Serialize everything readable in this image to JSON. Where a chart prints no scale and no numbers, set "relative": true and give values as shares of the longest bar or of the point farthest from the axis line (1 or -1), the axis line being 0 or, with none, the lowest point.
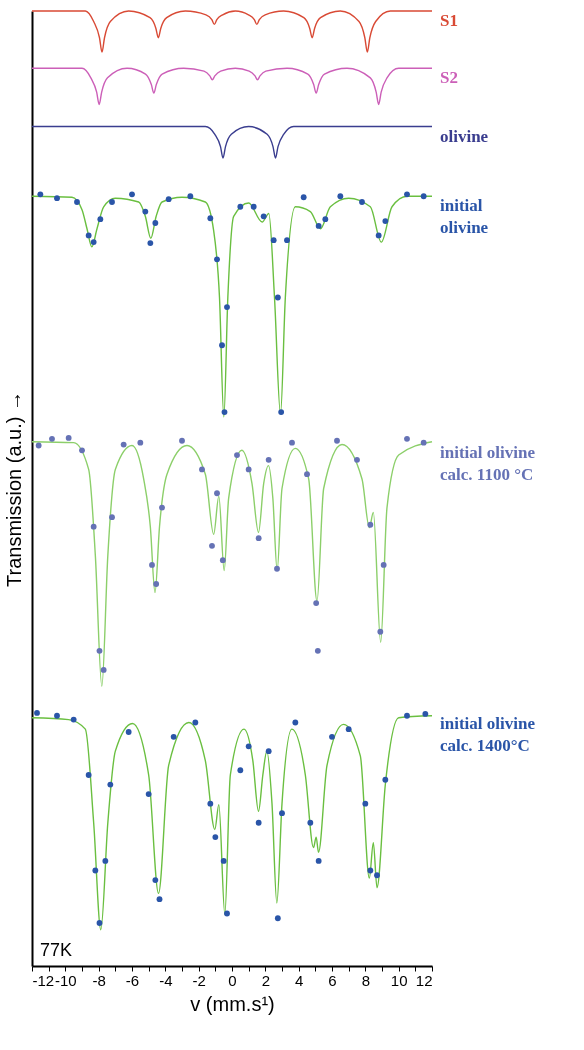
{
  "chart_data": {
    "type": "line",
    "relative": true,
    "xlabel": "v (mm.s¹)",
    "ylabel": "Transmission (a.u.) →",
    "xlim": [
      -12,
      12
    ],
    "xticks": [
      -12,
      {
        "value": -11,
        "label": null
      },
      -10,
      {
        "value": -9,
        "label": null
      },
      -8,
      {
        "value": -7,
        "label": null
      },
      -6,
      {
        "value": -5,
        "label": null
      },
      -4,
      {
        "value": -3,
        "label": null
      },
      -2,
      {
        "value": -1,
        "label": null
      },
      0,
      {
        "value": 1,
        "label": null
      },
      2,
      {
        "value": 3,
        "label": null
      },
      4,
      {
        "value": 5,
        "label": null
      },
      6,
      {
        "value": 7,
        "label": null
      },
      8,
      {
        "value": 9,
        "label": null
      },
      10,
      {
        "value": 11,
        "label": null
      },
      12
    ],
    "tick_labels": "x",
    "grid": false,
    "line_style": "solid",
    "annotations": [
      "77K"
    ],
    "series": [
      {
        "name": "S1",
        "type": "line",
        "color": "#d94a35",
        "x": [
          -12,
          -8.8,
          -8.3,
          -7.95,
          -7.8,
          -7.65,
          -7.3,
          -6.2,
          -4.92,
          -4.57,
          -4.42,
          -4.27,
          -3.92,
          -2.8,
          -1.56,
          -1.21,
          -1.06,
          -0.91,
          -0.56,
          0.2,
          0.99,
          1.34,
          1.49,
          1.64,
          1.99,
          3.1,
          4.31,
          4.66,
          4.81,
          4.96,
          5.31,
          6.5,
          7.62,
          7.97,
          8.12,
          8.27,
          8.62,
          9.5,
          12
        ],
        "values": [
          1,
          1,
          0.989,
          0.972,
          0.957,
          0.972,
          0.989,
          1,
          0.993,
          0.982,
          0.972,
          0.982,
          0.993,
          1,
          0.996,
          0.991,
          0.986,
          0.991,
          0.996,
          1,
          0.996,
          0.991,
          0.986,
          0.991,
          0.996,
          1,
          0.993,
          0.982,
          0.972,
          0.982,
          0.993,
          1,
          0.989,
          0.972,
          0.957,
          0.972,
          0.989,
          1,
          1
        ]
      },
      {
        "name": "S2",
        "type": "line",
        "color": "#cc5fb8",
        "x": [
          -12,
          -9,
          -8.47,
          -8.12,
          -7.97,
          -7.82,
          -7.47,
          -6.3,
          -5.19,
          -4.84,
          -4.69,
          -4.54,
          -4.19,
          -2.9,
          -1.68,
          -1.33,
          -1.18,
          -1.03,
          -0.68,
          0.2,
          1.03,
          1.38,
          1.53,
          1.68,
          2.03,
          3.3,
          4.55,
          4.9,
          5.05,
          5.2,
          5.55,
          6.9,
          8.3,
          8.65,
          8.8,
          8.95,
          9.3,
          10,
          12
        ],
        "values": [
          0.94,
          0.94,
          0.93,
          0.915,
          0.902,
          0.915,
          0.93,
          0.94,
          0.934,
          0.923,
          0.914,
          0.923,
          0.934,
          0.94,
          0.937,
          0.932,
          0.928,
          0.932,
          0.937,
          0.94,
          0.937,
          0.932,
          0.928,
          0.932,
          0.937,
          0.94,
          0.934,
          0.923,
          0.914,
          0.923,
          0.934,
          0.94,
          0.93,
          0.915,
          0.902,
          0.915,
          0.93,
          0.94,
          0.94
        ]
      },
      {
        "name": "olivine",
        "type": "line",
        "color": "#3a3d8f",
        "x": [
          -12,
          -1.6,
          -1.04,
          -0.69,
          -0.54,
          -0.39,
          -0.04,
          1.0,
          2.11,
          2.46,
          2.61,
          2.76,
          3.11,
          3.7,
          12
        ],
        "values": [
          0.879,
          0.879,
          0.871,
          0.858,
          0.846,
          0.858,
          0.871,
          0.879,
          0.871,
          0.858,
          0.846,
          0.858,
          0.871,
          0.879,
          0.879
        ]
      },
      {
        "name": "initial\nolivine",
        "type": "scatter",
        "marker": "circle",
        "color": "#2a55a8",
        "x": [
          -11.5,
          -10.5,
          -9.3,
          -8.6,
          -8.3,
          -7.9,
          -7.2,
          -6.0,
          -5.2,
          -4.9,
          -4.6,
          -3.8,
          -2.5,
          -1.3,
          -0.9,
          -0.6,
          -0.45,
          -0.3,
          0.5,
          1.3,
          1.9,
          2.5,
          2.75,
          2.95,
          3.3,
          4.3,
          5.2,
          5.6,
          6.5,
          7.8,
          8.8,
          9.2,
          10.5,
          11.5
        ],
        "values": [
          0.808,
          0.804,
          0.8,
          0.765,
          0.758,
          0.782,
          0.8,
          0.808,
          0.79,
          0.757,
          0.778,
          0.803,
          0.806,
          0.783,
          0.74,
          0.65,
          0.58,
          0.69,
          0.795,
          0.795,
          0.785,
          0.76,
          0.7,
          0.58,
          0.76,
          0.805,
          0.775,
          0.782,
          0.806,
          0.8,
          0.765,
          0.78,
          0.808,
          0.806
        ]
      },
      {
        "type": "line",
        "color": "#6abf40",
        "x": [
          -12,
          -9.6,
          -9.0,
          -8.7,
          -8.41,
          -8.1,
          -7.7,
          -7.0,
          -5.6,
          -5.2,
          -4.87,
          -4.55,
          -4.2,
          -3.0,
          -1.6,
          -1.1,
          -0.75,
          -0.49,
          -0.25,
          0.1,
          1.0,
          1.81,
          2.21,
          2.55,
          2.91,
          3.2,
          3.8,
          4.7,
          5.31,
          5.9,
          7.0,
          8.3,
          8.96,
          9.6,
          10.5,
          12
        ],
        "values": [
          0.806,
          0.805,
          0.792,
          0.772,
          0.753,
          0.772,
          0.795,
          0.804,
          0.8,
          0.785,
          0.762,
          0.785,
          0.8,
          0.805,
          0.8,
          0.77,
          0.7,
          0.575,
          0.7,
          0.785,
          0.799,
          0.779,
          0.788,
          0.7,
          0.578,
          0.7,
          0.795,
          0.79,
          0.772,
          0.795,
          0.804,
          0.795,
          0.758,
          0.795,
          0.806,
          0.806
        ]
      },
      {
        "name": "initial olivine\ncalc. 1100 °C",
        "type": "scatter",
        "marker": "circle",
        "color": "#6572b5",
        "x": [
          -11.6,
          -10.8,
          -9.8,
          -9.0,
          -8.3,
          -7.95,
          -7.7,
          -7.2,
          -6.5,
          -5.5,
          -4.8,
          -4.55,
          -4.2,
          -3.0,
          -1.8,
          -1.2,
          -0.9,
          -0.55,
          0.3,
          1.0,
          1.6,
          2.2,
          2.7,
          3.6,
          4.5,
          5.05,
          5.15,
          6.3,
          7.5,
          8.3,
          8.9,
          9.1,
          10.5,
          11.5
        ],
        "values": [
          0.545,
          0.552,
          0.553,
          0.54,
          0.46,
          0.33,
          0.31,
          0.47,
          0.546,
          0.548,
          0.42,
          0.4,
          0.48,
          0.55,
          0.52,
          0.44,
          0.495,
          0.425,
          0.535,
          0.52,
          0.448,
          0.53,
          0.416,
          0.548,
          0.515,
          0.38,
          0.33,
          0.55,
          0.53,
          0.462,
          0.35,
          0.42,
          0.552,
          0.548
        ]
      },
      {
        "type": "line",
        "color": "#8ccf6a",
        "x": [
          -12,
          -9.5,
          -8.6,
          -8.2,
          -7.81,
          -7.45,
          -7.0,
          -6.0,
          -5.3,
          -4.9,
          -4.62,
          -4.35,
          -3.9,
          -2.7,
          -1.6,
          -1.1,
          -0.79,
          -0.47,
          -0.2,
          0.59,
          1.2,
          1.59,
          1.9,
          2.19,
          2.45,
          2.71,
          3.0,
          3.8,
          4.6,
          5.1,
          5.5,
          6.6,
          7.8,
          8.24,
          8.48,
          8.92,
          9.3,
          10.0,
          12
        ],
        "values": [
          0.549,
          0.548,
          0.52,
          0.43,
          0.293,
          0.43,
          0.52,
          0.545,
          0.51,
          0.46,
          0.391,
          0.46,
          0.515,
          0.545,
          0.515,
          0.452,
          0.492,
          0.414,
          0.49,
          0.54,
          0.505,
          0.454,
          0.505,
          0.524,
          0.49,
          0.414,
          0.5,
          0.542,
          0.51,
          0.382,
          0.5,
          0.546,
          0.51,
          0.459,
          0.475,
          0.339,
          0.48,
          0.535,
          0.549
        ]
      },
      {
        "name": "initial olivine\ncalc. 1400°C",
        "type": "scatter",
        "marker": "circle",
        "color": "#2a55a8",
        "x": [
          -11.7,
          -10.5,
          -9.5,
          -8.6,
          -8.2,
          -7.95,
          -7.6,
          -7.3,
          -6.2,
          -5.0,
          -4.6,
          -4.35,
          -3.5,
          -2.2,
          -1.3,
          -1.0,
          -0.5,
          -0.3,
          0.5,
          1.0,
          1.6,
          2.2,
          2.75,
          3.0,
          3.8,
          4.7,
          5.2,
          6.0,
          7.0,
          8.0,
          8.3,
          8.7,
          9.2,
          10.5,
          11.6
        ],
        "values": [
          0.265,
          0.262,
          0.258,
          0.2,
          0.1,
          0.045,
          0.11,
          0.19,
          0.245,
          0.18,
          0.09,
          0.07,
          0.24,
          0.255,
          0.17,
          0.135,
          0.11,
          0.055,
          0.205,
          0.23,
          0.15,
          0.225,
          0.05,
          0.16,
          0.255,
          0.15,
          0.11,
          0.24,
          0.248,
          0.17,
          0.1,
          0.095,
          0.195,
          0.262,
          0.264
        ]
      },
      {
        "type": "line",
        "color": "#6abf40",
        "x": [
          -12,
          -9.8,
          -8.8,
          -8.3,
          -7.87,
          -7.45,
          -7.0,
          -5.97,
          -5.0,
          -4.41,
          -3.8,
          -2.59,
          -1.6,
          -1.03,
          -0.79,
          -0.43,
          -0.1,
          0.72,
          1.25,
          1.59,
          1.85,
          2.09,
          2.4,
          2.69,
          3.0,
          3.59,
          4.4,
          4.89,
          5.05,
          5.19,
          5.7,
          6.69,
          7.7,
          8.24,
          8.48,
          8.7,
          9.2,
          10.0,
          12
        ],
        "values": [
          0.26,
          0.258,
          0.248,
          0.15,
          0.038,
          0.15,
          0.225,
          0.254,
          0.2,
          0.076,
          0.21,
          0.255,
          0.215,
          0.143,
          0.169,
          0.054,
          0.2,
          0.248,
          0.215,
          0.162,
          0.2,
          0.225,
          0.17,
          0.066,
          0.17,
          0.248,
          0.2,
          0.124,
          0.135,
          0.119,
          0.21,
          0.253,
          0.22,
          0.092,
          0.129,
          0.082,
          0.19,
          0.26,
          0.262
        ]
      }
    ]
  }
}
